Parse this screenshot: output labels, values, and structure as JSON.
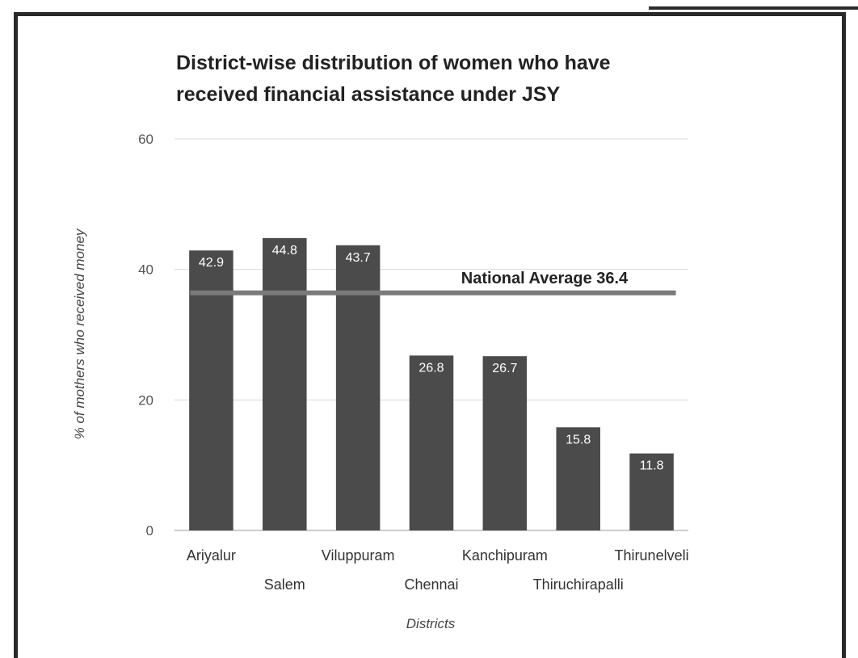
{
  "chart_data": {
    "type": "bar",
    "title_lines": [
      "District-wise distribution of women who have",
      "received financial assistance under JSY"
    ],
    "xlabel": "Districts",
    "ylabel": "% of mothers who received money",
    "categories": [
      "Ariyalur",
      "Salem",
      "Viluppuram",
      "Chennai",
      "Kanchipuram",
      "Thiruchirapalli",
      "Thirunelveli"
    ],
    "values": [
      42.9,
      44.8,
      43.7,
      26.8,
      26.7,
      15.8,
      11.8
    ],
    "data_labels": [
      "42.9",
      "44.8",
      "43.7",
      "26.8",
      "26.7",
      "15.8",
      "11.8"
    ],
    "ylim": [
      0,
      60
    ],
    "yticks": [
      0,
      20,
      40,
      60
    ],
    "grid": true,
    "reference_line": {
      "value": 36.4,
      "label": "National Average 36.4"
    },
    "colors": {
      "bar": "#4b4b4b",
      "reference": "#7a7a7a",
      "grid": "#d9d9d9"
    }
  }
}
